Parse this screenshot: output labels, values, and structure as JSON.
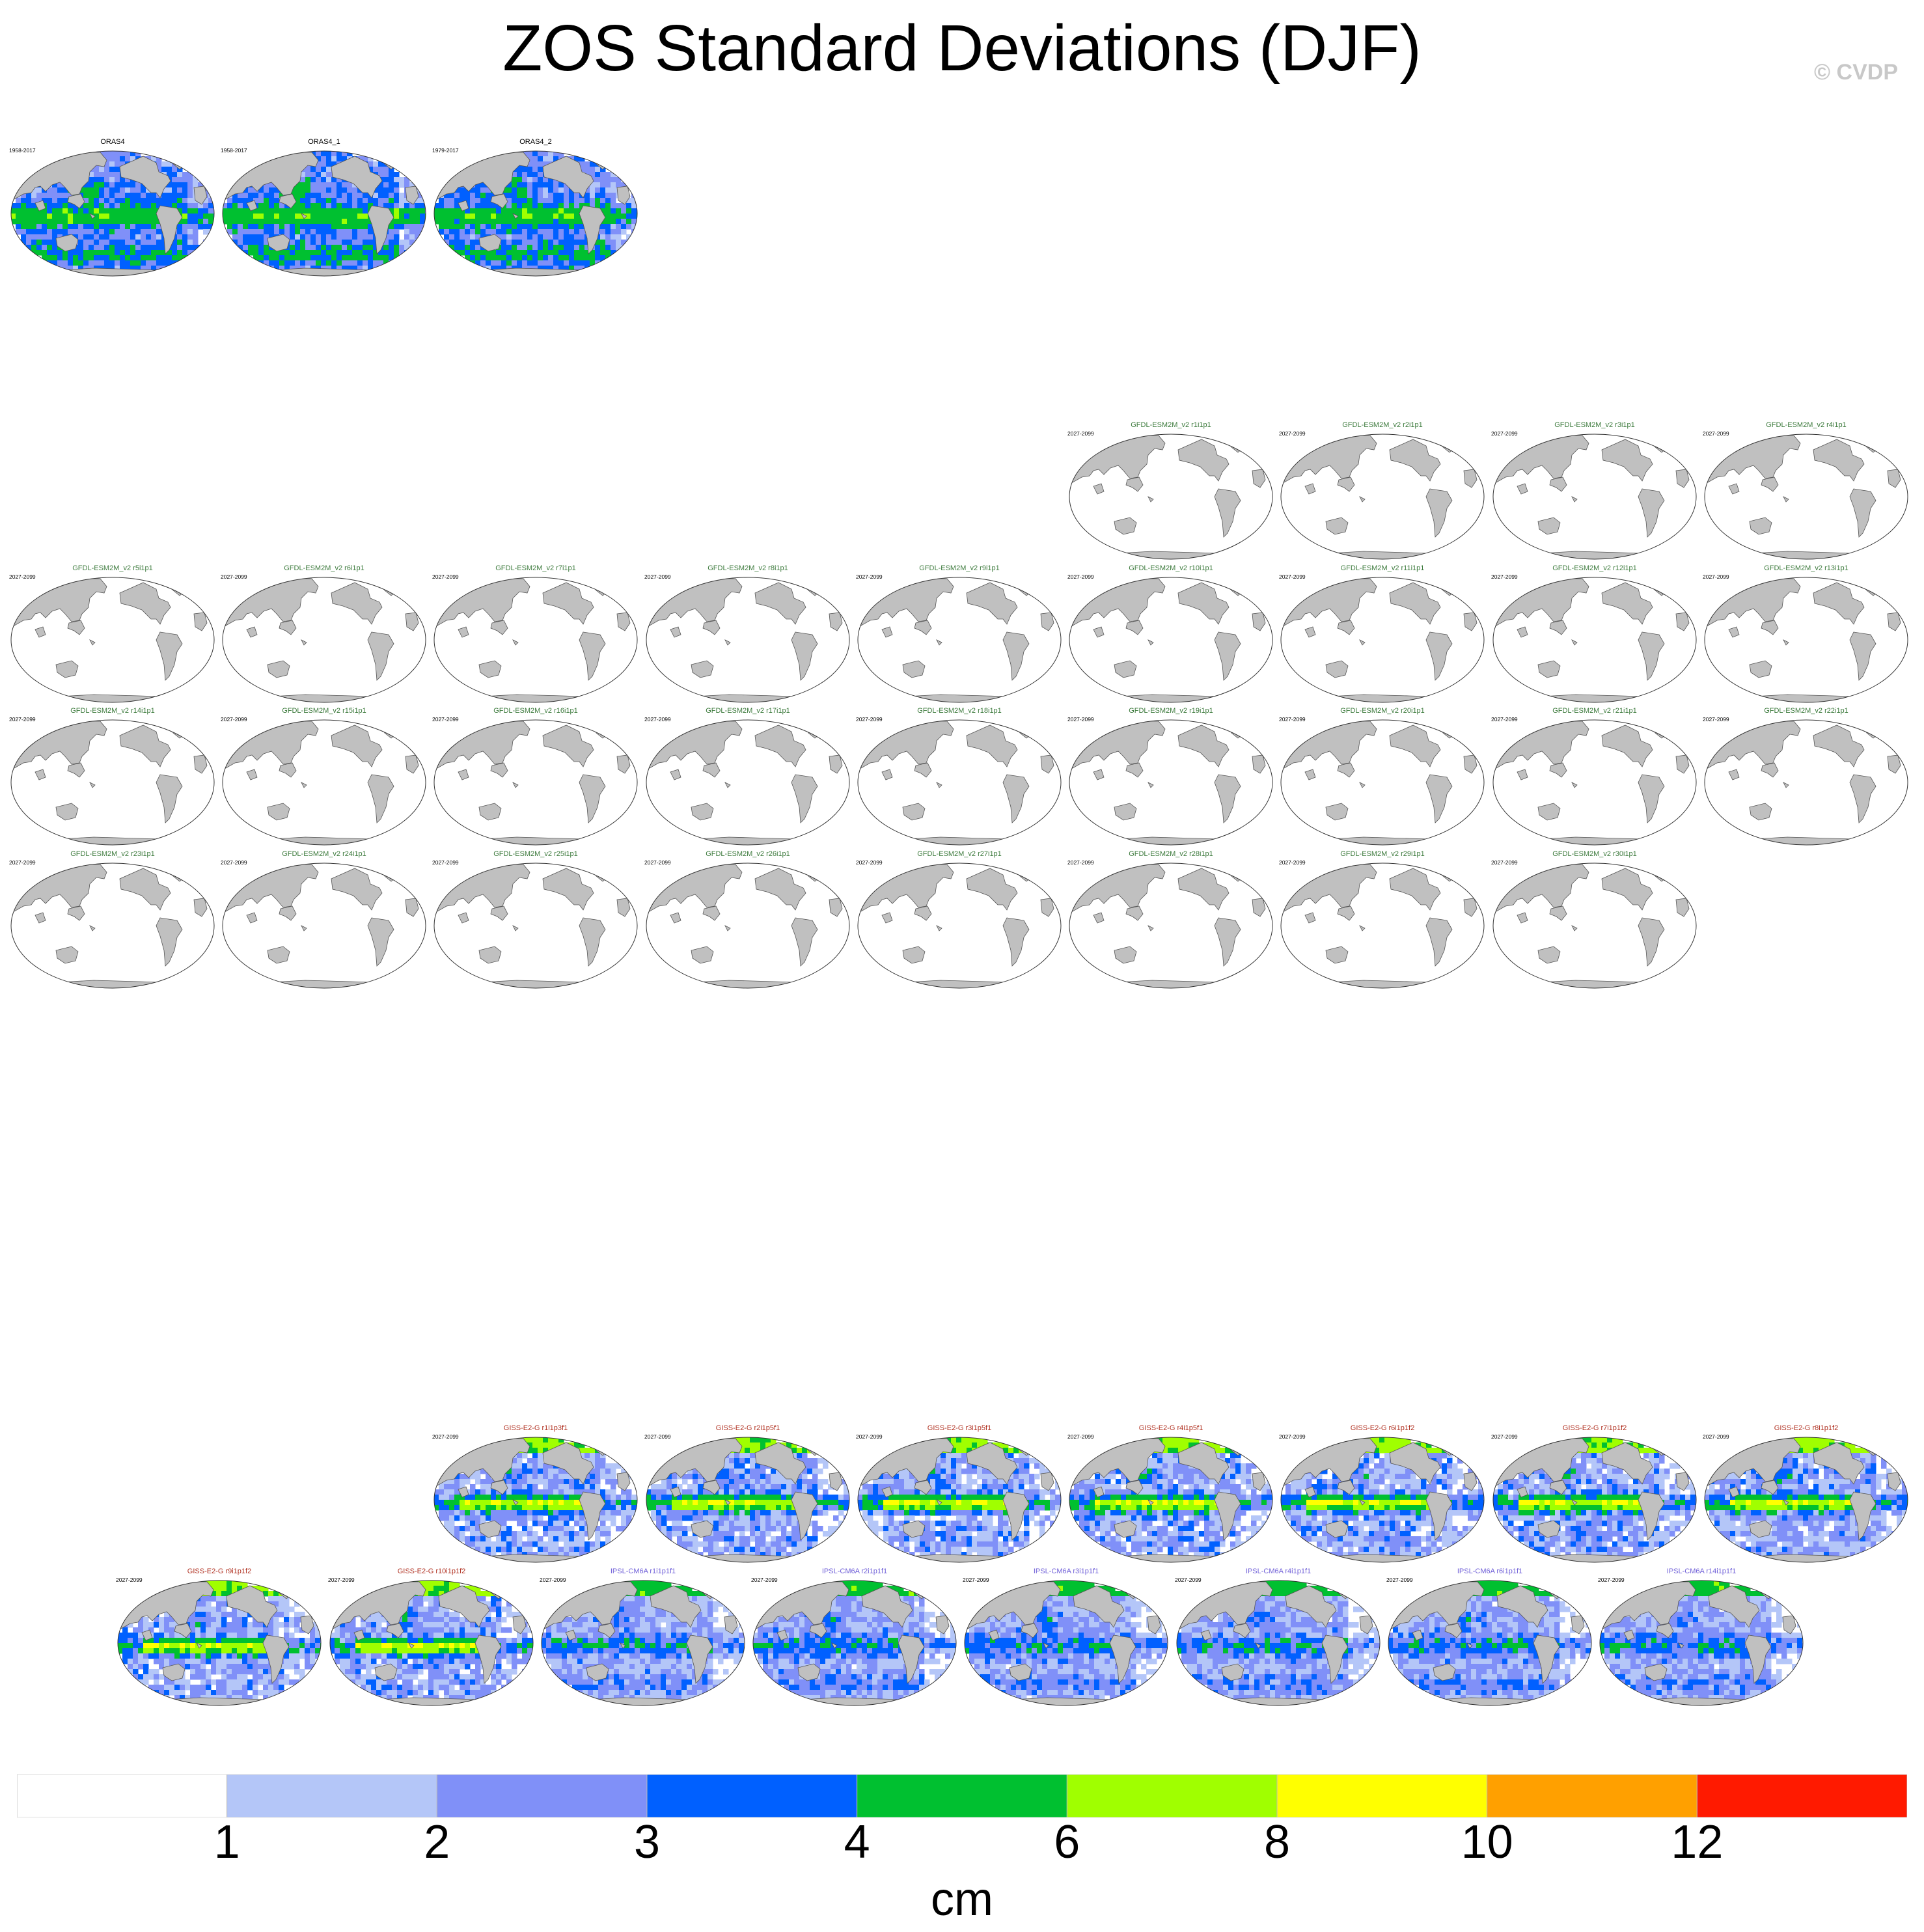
{
  "title": "ZOS Standard Deviations (DJF)",
  "copyright": "© CVDP",
  "colors": {
    "land": "#c0c0c0",
    "outline": "#555555",
    "obs_title": "#000000",
    "gfdl_title": "#3c7a3c",
    "giss_title": "#b03020",
    "ipsl_title": "#7060d8"
  },
  "chart_data": {
    "type": "heatmap",
    "variable": "ZOS",
    "season": "DJF",
    "units": "cm",
    "colorbar": {
      "levels": [
        1,
        2,
        3,
        4,
        6,
        8,
        10,
        12
      ],
      "tick_labels": [
        "1",
        "2",
        "3",
        "4",
        "6",
        "8",
        "10",
        "12"
      ],
      "colors": [
        "#ffffff",
        "#b4c6f8",
        "#8090f8",
        "#0060ff",
        "#00c030",
        "#a0ff00",
        "#ffff00",
        "#ffa000",
        "#ff1a00"
      ],
      "label": "cm"
    },
    "panels": [
      {
        "title": "ORAS4",
        "years": "1958-2017",
        "group": "obs",
        "pattern": "obs"
      },
      {
        "title": "ORAS4_1",
        "years": "1958-2017",
        "group": "obs",
        "pattern": "obs"
      },
      {
        "title": "ORAS4_2",
        "years": "1979-2017",
        "group": "obs",
        "pattern": "obs"
      },
      {
        "title": "GFDL-ESM2M_v2 r1i1p1",
        "years": "2027-2099",
        "group": "gfdl",
        "pattern": "empty"
      },
      {
        "title": "GFDL-ESM2M_v2 r2i1p1",
        "years": "2027-2099",
        "group": "gfdl",
        "pattern": "empty"
      },
      {
        "title": "GFDL-ESM2M_v2 r3i1p1",
        "years": "2027-2099",
        "group": "gfdl",
        "pattern": "empty"
      },
      {
        "title": "GFDL-ESM2M_v2 r4i1p1",
        "years": "2027-2099",
        "group": "gfdl",
        "pattern": "empty"
      },
      {
        "title": "GFDL-ESM2M_v2 r5i1p1",
        "years": "2027-2099",
        "group": "gfdl",
        "pattern": "empty"
      },
      {
        "title": "GFDL-ESM2M_v2 r6i1p1",
        "years": "2027-2099",
        "group": "gfdl",
        "pattern": "empty"
      },
      {
        "title": "GFDL-ESM2M_v2 r7i1p1",
        "years": "2027-2099",
        "group": "gfdl",
        "pattern": "empty"
      },
      {
        "title": "GFDL-ESM2M_v2 r8i1p1",
        "years": "2027-2099",
        "group": "gfdl",
        "pattern": "empty"
      },
      {
        "title": "GFDL-ESM2M_v2 r9i1p1",
        "years": "2027-2099",
        "group": "gfdl",
        "pattern": "empty"
      },
      {
        "title": "GFDL-ESM2M_v2 r10i1p1",
        "years": "2027-2099",
        "group": "gfdl",
        "pattern": "empty"
      },
      {
        "title": "GFDL-ESM2M_v2 r11i1p1",
        "years": "2027-2099",
        "group": "gfdl",
        "pattern": "empty"
      },
      {
        "title": "GFDL-ESM2M_v2 r12i1p1",
        "years": "2027-2099",
        "group": "gfdl",
        "pattern": "empty"
      },
      {
        "title": "GFDL-ESM2M_v2 r13i1p1",
        "years": "2027-2099",
        "group": "gfdl",
        "pattern": "empty"
      },
      {
        "title": "GFDL-ESM2M_v2 r14i1p1",
        "years": "2027-2099",
        "group": "gfdl",
        "pattern": "empty"
      },
      {
        "title": "GFDL-ESM2M_v2 r15i1p1",
        "years": "2027-2099",
        "group": "gfdl",
        "pattern": "empty"
      },
      {
        "title": "GFDL-ESM2M_v2 r16i1p1",
        "years": "2027-2099",
        "group": "gfdl",
        "pattern": "empty"
      },
      {
        "title": "GFDL-ESM2M_v2 r17i1p1",
        "years": "2027-2099",
        "group": "gfdl",
        "pattern": "empty"
      },
      {
        "title": "GFDL-ESM2M_v2 r18i1p1",
        "years": "2027-2099",
        "group": "gfdl",
        "pattern": "empty"
      },
      {
        "title": "GFDL-ESM2M_v2 r19i1p1",
        "years": "2027-2099",
        "group": "gfdl",
        "pattern": "empty"
      },
      {
        "title": "GFDL-ESM2M_v2 r20i1p1",
        "years": "2027-2099",
        "group": "gfdl",
        "pattern": "empty"
      },
      {
        "title": "GFDL-ESM2M_v2 r21i1p1",
        "years": "2027-2099",
        "group": "gfdl",
        "pattern": "empty"
      },
      {
        "title": "GFDL-ESM2M_v2 r22i1p1",
        "years": "2027-2099",
        "group": "gfdl",
        "pattern": "empty"
      },
      {
        "title": "GFDL-ESM2M_v2 r23i1p1",
        "years": "2027-2099",
        "group": "gfdl",
        "pattern": "empty"
      },
      {
        "title": "GFDL-ESM2M_v2 r24i1p1",
        "years": "2027-2099",
        "group": "gfdl",
        "pattern": "empty"
      },
      {
        "title": "GFDL-ESM2M_v2 r25i1p1",
        "years": "2027-2099",
        "group": "gfdl",
        "pattern": "empty"
      },
      {
        "title": "GFDL-ESM2M_v2 r26i1p1",
        "years": "2027-2099",
        "group": "gfdl",
        "pattern": "empty"
      },
      {
        "title": "GFDL-ESM2M_v2 r27i1p1",
        "years": "2027-2099",
        "group": "gfdl",
        "pattern": "empty"
      },
      {
        "title": "GFDL-ESM2M_v2 r28i1p1",
        "years": "2027-2099",
        "group": "gfdl",
        "pattern": "empty"
      },
      {
        "title": "GFDL-ESM2M_v2 r29i1p1",
        "years": "2027-2099",
        "group": "gfdl",
        "pattern": "empty"
      },
      {
        "title": "GFDL-ESM2M_v2 r30i1p1",
        "years": "2027-2099",
        "group": "gfdl",
        "pattern": "empty"
      },
      {
        "title": "GISS-E2-G r1i1p3f1",
        "years": "2027-2099",
        "group": "giss",
        "pattern": "giss"
      },
      {
        "title": "GISS-E2-G r2i1p5f1",
        "years": "2027-2099",
        "group": "giss",
        "pattern": "giss"
      },
      {
        "title": "GISS-E2-G r3i1p5f1",
        "years": "2027-2099",
        "group": "giss",
        "pattern": "giss"
      },
      {
        "title": "GISS-E2-G r4i1p5f1",
        "years": "2027-2099",
        "group": "giss",
        "pattern": "giss"
      },
      {
        "title": "GISS-E2-G r6i1p1f2",
        "years": "2027-2099",
        "group": "giss",
        "pattern": "giss"
      },
      {
        "title": "GISS-E2-G r7i1p1f2",
        "years": "2027-2099",
        "group": "giss",
        "pattern": "giss"
      },
      {
        "title": "GISS-E2-G r8i1p1f2",
        "years": "2027-2099",
        "group": "giss",
        "pattern": "giss"
      },
      {
        "title": "GISS-E2-G r9i1p1f2",
        "years": "2027-2099",
        "group": "giss",
        "pattern": "giss"
      },
      {
        "title": "GISS-E2-G r10i1p1f2",
        "years": "2027-2099",
        "group": "giss",
        "pattern": "giss"
      },
      {
        "title": "IPSL-CM6A r1i1p1f1",
        "years": "2027-2099",
        "group": "ipsl",
        "pattern": "ipsl"
      },
      {
        "title": "IPSL-CM6A r2i1p1f1",
        "years": "2027-2099",
        "group": "ipsl",
        "pattern": "ipsl"
      },
      {
        "title": "IPSL-CM6A r3i1p1f1",
        "years": "2027-2099",
        "group": "ipsl",
        "pattern": "ipsl"
      },
      {
        "title": "IPSL-CM6A r4i1p1f1",
        "years": "2027-2099",
        "group": "ipsl",
        "pattern": "ipsl"
      },
      {
        "title": "IPSL-CM6A r6i1p1f1",
        "years": "2027-2099",
        "group": "ipsl",
        "pattern": "ipsl"
      },
      {
        "title": "IPSL-CM6A r14i1p1f1",
        "years": "2027-2099",
        "group": "ipsl",
        "pattern": "ipsl"
      }
    ]
  }
}
